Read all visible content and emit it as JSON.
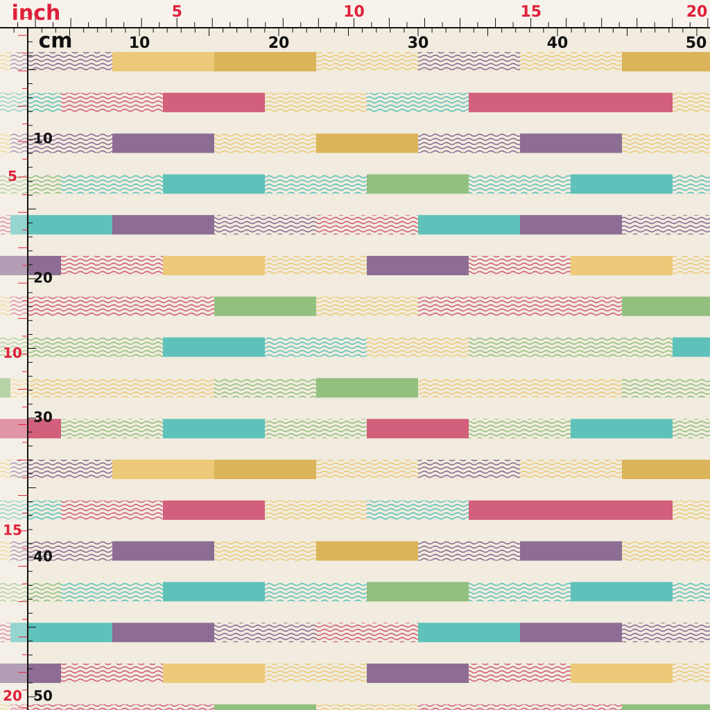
{
  "ruler": {
    "inch_label": "inch",
    "cm_label": "cm",
    "top": {
      "inch": [
        5,
        10,
        15,
        20
      ],
      "cm": [
        10,
        20,
        30,
        40,
        50
      ]
    },
    "left": {
      "inch": [
        5,
        10,
        15,
        20
      ],
      "cm": [
        10,
        20,
        30,
        40,
        50
      ]
    }
  }
}
